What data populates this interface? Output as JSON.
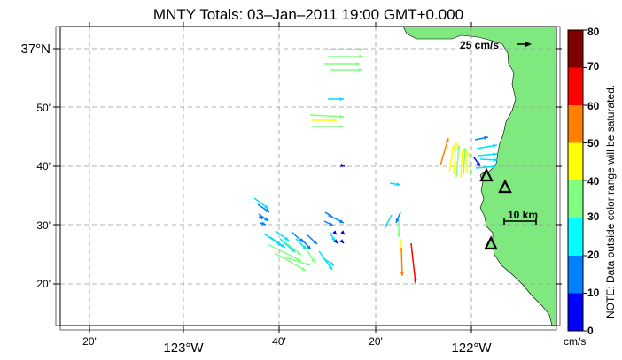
{
  "title": "MNTY Totals: 03–Jan–2011 19:00 GMT+0.000",
  "axes": {
    "x_ticks": [
      {
        "label": "20'",
        "major": false
      },
      {
        "label": "123°W",
        "major": true
      },
      {
        "label": "40'",
        "major": false
      },
      {
        "label": "20'",
        "major": false
      },
      {
        "label": "122°W",
        "major": true
      }
    ],
    "y_ticks": [
      {
        "label": "37°N",
        "major": true
      },
      {
        "label": "50'",
        "major": false
      },
      {
        "label": "40'",
        "major": false
      },
      {
        "label": "30'",
        "major": false
      },
      {
        "label": "20'",
        "major": false
      }
    ]
  },
  "scale": {
    "velocity_label": "25 cm/s",
    "distance_label": "10 km"
  },
  "colorbar": {
    "ticks": [
      "80",
      "70",
      "60",
      "50",
      "40",
      "30",
      "20",
      "10",
      "0"
    ],
    "unit": "cm/s",
    "note": "NOTE: Data outside color range will be saturated.",
    "colors": [
      "#800000",
      "#ff0000",
      "#ff8000",
      "#ffff00",
      "#80ff80",
      "#00ffff",
      "#0080ff",
      "#0000ff"
    ]
  },
  "colors": {
    "land": "#7fe87f",
    "grid": "#9a9a9a",
    "station": "#000000"
  },
  "stations_count_visible": 3
}
